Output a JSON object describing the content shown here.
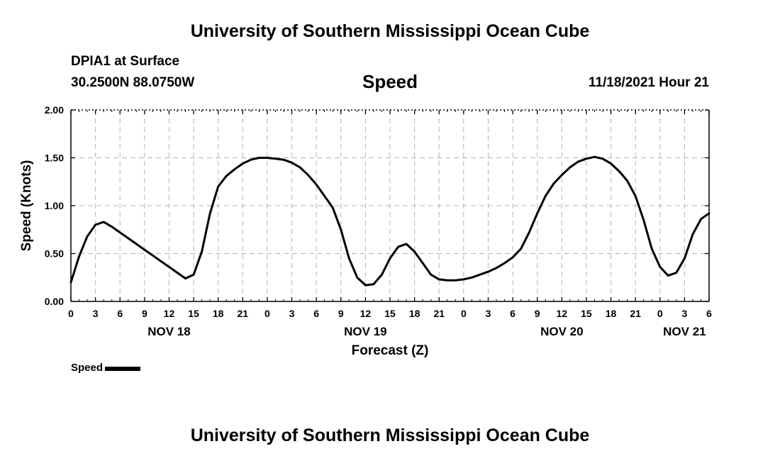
{
  "header": {
    "title": "University of Southern Mississippi Ocean Cube",
    "station": "DPIA1 at Surface",
    "coords": "30.2500N  88.0750W",
    "chart_title": "Speed",
    "datetime": "11/18/2021 Hour 21"
  },
  "legend": {
    "label": "Speed"
  },
  "footer": {
    "title": "University of Southern Mississippi Ocean Cube"
  },
  "chart_data": {
    "type": "line",
    "title": "Speed",
    "xlabel": "Forecast (Z)",
    "ylabel": "Speed (Knots)",
    "ylim": [
      0,
      2
    ],
    "xlim_hours": [
      0,
      78
    ],
    "y_ticks": [
      "0.00",
      "0.50",
      "1.00",
      "1.50",
      "2.00"
    ],
    "x_tick_labels": [
      "0",
      "3",
      "6",
      "9",
      "12",
      "15",
      "18",
      "21",
      "0",
      "3",
      "6",
      "9",
      "12",
      "15",
      "18",
      "21",
      "0",
      "3",
      "6",
      "9",
      "12",
      "15",
      "18",
      "21",
      "0",
      "3",
      "6"
    ],
    "date_labels": [
      {
        "label": "NOV 18",
        "hour": 12
      },
      {
        "label": "NOV 19",
        "hour": 36
      },
      {
        "label": "NOV 20",
        "hour": 60
      },
      {
        "label": "NOV 21",
        "hour": 75
      }
    ],
    "grid": true,
    "series": [
      {
        "name": "Speed",
        "color": "#000000",
        "x": [
          0,
          1,
          2,
          3,
          4,
          5,
          6,
          7,
          8,
          9,
          10,
          11,
          12,
          13,
          14,
          15,
          16,
          17,
          18,
          19,
          20,
          21,
          22,
          23,
          24,
          25,
          26,
          27,
          28,
          29,
          30,
          31,
          32,
          33,
          34,
          35,
          36,
          37,
          38,
          39,
          40,
          41,
          42,
          43,
          44,
          45,
          46,
          47,
          48,
          49,
          50,
          51,
          52,
          53,
          54,
          55,
          56,
          57,
          58,
          59,
          60,
          61,
          62,
          63,
          64,
          65,
          66,
          67,
          68,
          69,
          70,
          71,
          72,
          73,
          74,
          75,
          76,
          77,
          78
        ],
        "values": [
          0.2,
          0.47,
          0.68,
          0.8,
          0.83,
          0.78,
          0.72,
          0.66,
          0.6,
          0.54,
          0.48,
          0.42,
          0.36,
          0.3,
          0.24,
          0.28,
          0.52,
          0.92,
          1.2,
          1.31,
          1.38,
          1.44,
          1.48,
          1.5,
          1.5,
          1.49,
          1.48,
          1.45,
          1.4,
          1.32,
          1.22,
          1.1,
          0.98,
          0.75,
          0.45,
          0.25,
          0.17,
          0.18,
          0.28,
          0.45,
          0.57,
          0.6,
          0.52,
          0.4,
          0.28,
          0.23,
          0.22,
          0.22,
          0.23,
          0.25,
          0.28,
          0.31,
          0.35,
          0.4,
          0.46,
          0.55,
          0.72,
          0.92,
          1.1,
          1.23,
          1.32,
          1.4,
          1.46,
          1.49,
          1.51,
          1.49,
          1.44,
          1.36,
          1.26,
          1.1,
          0.85,
          0.55,
          0.36,
          0.27,
          0.3,
          0.45,
          0.7,
          0.86,
          0.92
        ]
      }
    ]
  }
}
